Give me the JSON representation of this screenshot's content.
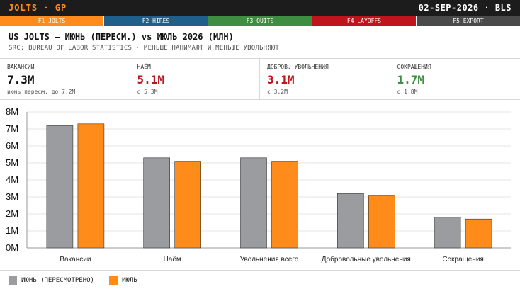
{
  "topbar": {
    "brand": "JOLTS · GP",
    "meta": "02-SEP-2026 · BLS"
  },
  "tabs": [
    {
      "label": "F1 JOLTS",
      "color": "#ff8c1a"
    },
    {
      "label": "F2 HIRES",
      "color": "#1f5f8b"
    },
    {
      "label": "F3 QUITS",
      "color": "#3e8e41"
    },
    {
      "label": "F4 LAYOFFS",
      "color": "#c0141c"
    },
    {
      "label": "F5 EXPORT",
      "color": "#4a4a4a"
    }
  ],
  "header": {
    "title": "US JOLTS — ИЮНЬ (ПЕРЕСМ.) vs ИЮЛЬ 2026 (МЛН)",
    "subtitle": "SRC: BUREAU OF LABOR STATISTICS · МЕНЬШЕ НАНИМАЮТ И МЕНЬШЕ УВОЛЬНЯЮТ"
  },
  "kpis": [
    {
      "label": "ВАКАНСИИ",
      "value": "7.3M",
      "note": "июнь пересм. до 7.2M",
      "color": "#111111"
    },
    {
      "label": "НАЁМ",
      "value": "5.1M",
      "note": "с 5.3M",
      "color": "#c0141c"
    },
    {
      "label": "ДОБРОВ. УВОЛЬНЕНИЯ",
      "value": "3.1M",
      "note": "с 3.2M",
      "color": "#c0141c"
    },
    {
      "label": "СОКРАЩЕНИЯ",
      "value": "1.7M",
      "note": "с 1.8M",
      "color": "#3e8e41"
    }
  ],
  "chart_data": {
    "type": "bar",
    "categories": [
      "Вакансии",
      "Наём",
      "Увольнения всего",
      "Добровольные увольнения",
      "Сокращения"
    ],
    "series": [
      {
        "name": "ИЮНЬ (ПЕРЕСМОТРЕНО)",
        "values": [
          7.2,
          5.3,
          5.3,
          3.2,
          1.8
        ],
        "color": "#9a9ca0"
      },
      {
        "name": "ИЮЛЬ",
        "values": [
          7.3,
          5.1,
          5.1,
          3.1,
          1.7
        ],
        "color": "#ff8c1a"
      }
    ],
    "ylim": [
      0,
      8
    ],
    "yticks": [
      "0M",
      "1M",
      "2M",
      "3M",
      "4M",
      "5M",
      "6M",
      "7M",
      "8M"
    ],
    "grid": true,
    "legend": "bottom-left"
  }
}
